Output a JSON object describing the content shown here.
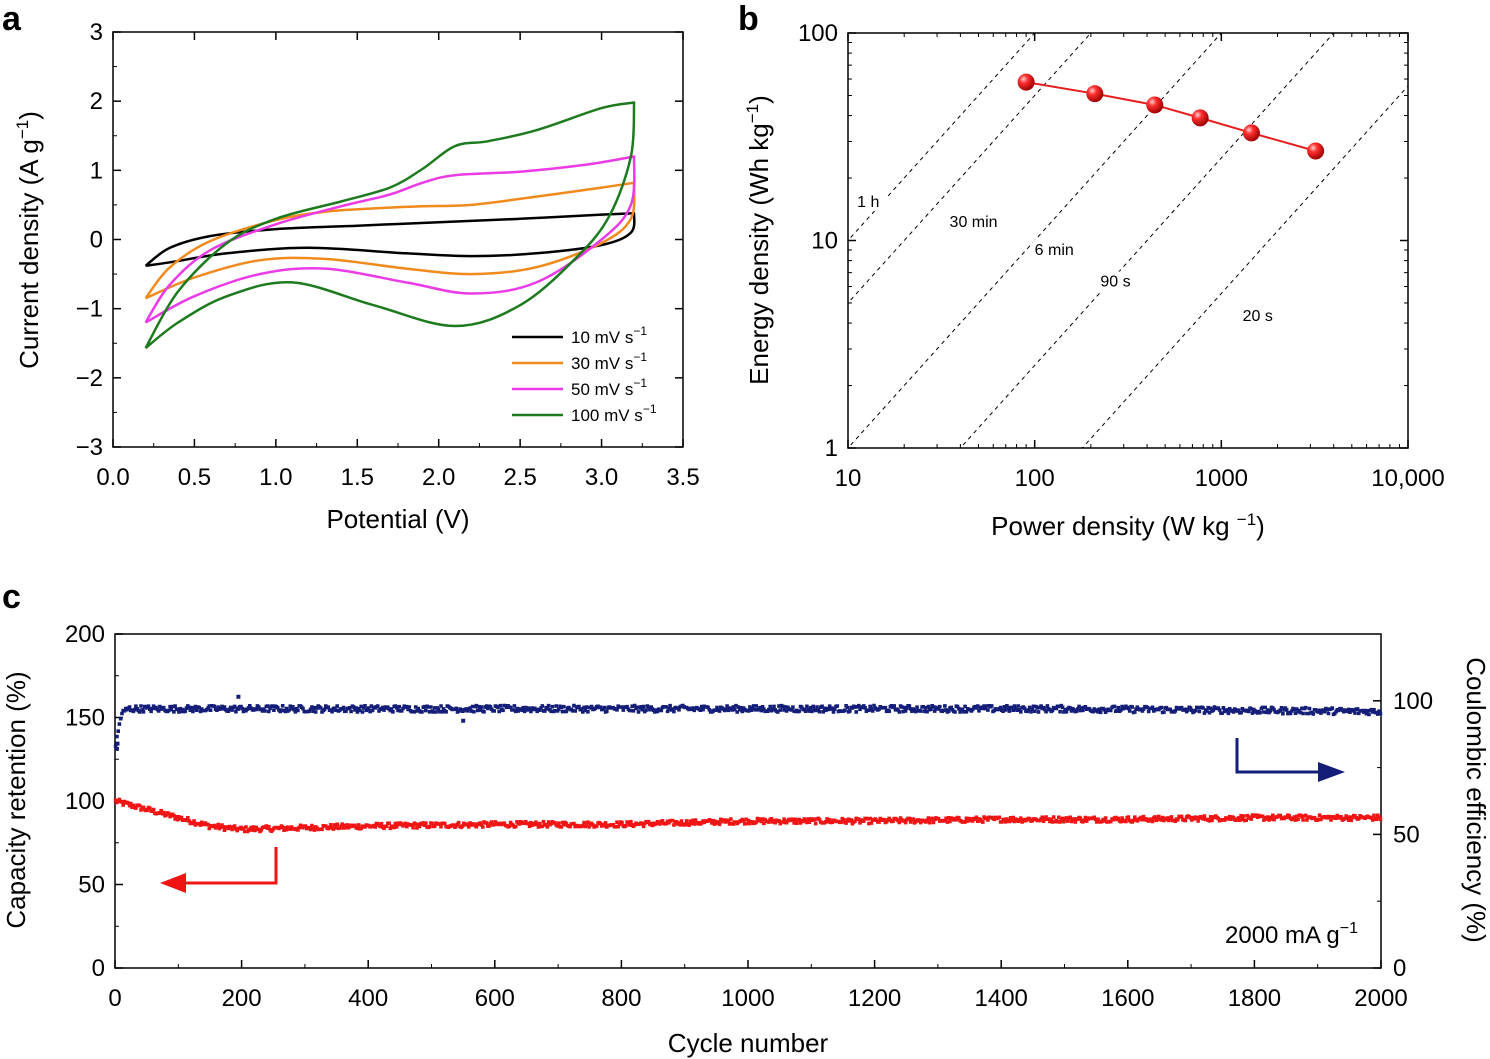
{
  "chart_data": [
    {
      "panel": "a",
      "type": "line",
      "xlabel": "Potential (V)",
      "ylabel": "Current density (A g−1)",
      "ylabel_base": "Current density (A g",
      "ylabel_sup": "−1",
      "ylabel_end": ")",
      "xlim": [
        0.0,
        3.5
      ],
      "ylim": [
        -3,
        3
      ],
      "xticks": [
        0.0,
        0.5,
        1.0,
        1.5,
        2.0,
        2.5,
        3.0,
        3.5
      ],
      "xtick_labels": [
        "0.0",
        "0.5",
        "1.0",
        "1.5",
        "2.0",
        "2.5",
        "3.0",
        "3.5"
      ],
      "yticks": [
        3,
        2,
        1,
        0,
        -1,
        -2,
        -3
      ],
      "ytick_labels": [
        "3",
        "2",
        "1",
        "0",
        "−1",
        "−2",
        "−3"
      ],
      "series": [
        {
          "name": "10 mV s−1",
          "label_base": "10 mV s",
          "label_sup": "−1",
          "color": "#000000",
          "upper": [
            [
              0.2,
              -0.38
            ],
            [
              0.35,
              -0.12
            ],
            [
              0.6,
              0.05
            ],
            [
              1.0,
              0.15
            ],
            [
              1.5,
              0.2
            ],
            [
              2.0,
              0.25
            ],
            [
              2.5,
              0.3
            ],
            [
              3.0,
              0.36
            ],
            [
              3.2,
              0.38
            ]
          ],
          "lower": [
            [
              3.2,
              0.38
            ],
            [
              3.18,
              0.1
            ],
            [
              3.0,
              -0.08
            ],
            [
              2.6,
              -0.2
            ],
            [
              2.2,
              -0.24
            ],
            [
              1.8,
              -0.2
            ],
            [
              1.2,
              -0.12
            ],
            [
              0.7,
              -0.2
            ],
            [
              0.35,
              -0.33
            ],
            [
              0.2,
              -0.38
            ]
          ]
        },
        {
          "name": "30 mV s−1",
          "label_base": "30 mV s",
          "label_sup": "−1",
          "color": "#f08a1c",
          "upper": [
            [
              0.2,
              -0.85
            ],
            [
              0.35,
              -0.4
            ],
            [
              0.6,
              -0.02
            ],
            [
              1.0,
              0.28
            ],
            [
              1.3,
              0.4
            ],
            [
              1.6,
              0.45
            ],
            [
              1.9,
              0.48
            ],
            [
              2.2,
              0.5
            ],
            [
              2.6,
              0.62
            ],
            [
              3.0,
              0.75
            ],
            [
              3.2,
              0.82
            ]
          ],
          "lower": [
            [
              3.2,
              0.82
            ],
            [
              3.18,
              0.3
            ],
            [
              3.0,
              -0.05
            ],
            [
              2.6,
              -0.4
            ],
            [
              2.2,
              -0.5
            ],
            [
              1.8,
              -0.42
            ],
            [
              1.3,
              -0.28
            ],
            [
              0.9,
              -0.3
            ],
            [
              0.5,
              -0.55
            ],
            [
              0.2,
              -0.85
            ]
          ]
        },
        {
          "name": "50 mV s−1",
          "label_base": "50 mV s",
          "label_sup": "−1",
          "color": "#ea3be6",
          "upper": [
            [
              0.2,
              -1.2
            ],
            [
              0.35,
              -0.65
            ],
            [
              0.6,
              -0.15
            ],
            [
              1.0,
              0.22
            ],
            [
              1.4,
              0.48
            ],
            [
              1.7,
              0.65
            ],
            [
              1.9,
              0.82
            ],
            [
              2.1,
              0.93
            ],
            [
              2.5,
              0.98
            ],
            [
              2.9,
              1.08
            ],
            [
              3.2,
              1.2
            ]
          ],
          "lower": [
            [
              3.2,
              1.2
            ],
            [
              3.18,
              0.5
            ],
            [
              3.0,
              0.0
            ],
            [
              2.6,
              -0.62
            ],
            [
              2.2,
              -0.78
            ],
            [
              1.8,
              -0.62
            ],
            [
              1.3,
              -0.42
            ],
            [
              0.9,
              -0.5
            ],
            [
              0.5,
              -0.82
            ],
            [
              0.2,
              -1.2
            ]
          ]
        },
        {
          "name": "100 mV s−1",
          "label_base": "100 mV s",
          "label_sup": "−1",
          "color": "#1e7a1e",
          "upper": [
            [
              0.2,
              -1.57
            ],
            [
              0.4,
              -0.75
            ],
            [
              0.7,
              -0.05
            ],
            [
              1.0,
              0.3
            ],
            [
              1.4,
              0.55
            ],
            [
              1.7,
              0.75
            ],
            [
              1.9,
              1.02
            ],
            [
              2.1,
              1.35
            ],
            [
              2.3,
              1.42
            ],
            [
              2.6,
              1.58
            ],
            [
              3.0,
              1.9
            ],
            [
              3.2,
              1.98
            ]
          ],
          "lower": [
            [
              3.2,
              1.98
            ],
            [
              3.18,
              1.2
            ],
            [
              3.05,
              0.35
            ],
            [
              2.85,
              -0.25
            ],
            [
              2.5,
              -0.95
            ],
            [
              2.1,
              -1.25
            ],
            [
              1.6,
              -0.95
            ],
            [
              1.1,
              -0.62
            ],
            [
              0.7,
              -0.82
            ],
            [
              0.4,
              -1.2
            ],
            [
              0.2,
              -1.57
            ]
          ]
        }
      ]
    },
    {
      "panel": "b",
      "type": "scatter",
      "xscale": "log",
      "yscale": "log",
      "xlabel": "Power density (W kg −1)",
      "xlabel_base": "Power density (W kg ",
      "xlabel_sup": "−1",
      "xlabel_end": ")",
      "ylabel": "Energy density (Wh kg−1)",
      "ylabel_base": "Energy density (Wh kg",
      "ylabel_sup": "−1",
      "ylabel_end": ")",
      "xlim": [
        10,
        10000
      ],
      "ylim": [
        1,
        100
      ],
      "xticks": [
        10,
        100,
        1000,
        10000
      ],
      "xtick_labels": [
        "10",
        "100",
        "1000",
        "10,000"
      ],
      "yticks": [
        1,
        10,
        100
      ],
      "ytick_labels": [
        "1",
        "10",
        "100"
      ],
      "series": [
        {
          "name": "device",
          "color": "#e61e1e",
          "x": [
            90,
            210,
            440,
            770,
            1450,
            3200
          ],
          "y": [
            58,
            51,
            45,
            39,
            33,
            27
          ]
        }
      ],
      "time_lines": [
        {
          "label": "1 h",
          "hours": 1.0
        },
        {
          "label": "30 min",
          "hours": 0.5
        },
        {
          "label": "6 min",
          "hours": 0.1
        },
        {
          "label": "90 s",
          "hours": 0.025
        },
        {
          "label": "20 s",
          "hours": 0.005556
        }
      ]
    },
    {
      "panel": "c",
      "type": "scatter",
      "xlabel": "Cycle number",
      "ylabel": "Capacity retention (%)",
      "ylabel_right": "Coulombic efficiency (%)",
      "xlim": [
        0,
        2000
      ],
      "ylim": [
        0,
        200
      ],
      "ylim_right": [
        0,
        125
      ],
      "xticks": [
        0,
        200,
        400,
        600,
        800,
        1000,
        1200,
        1400,
        1600,
        1800,
        2000
      ],
      "xtick_labels": [
        "0",
        "200",
        "400",
        "600",
        "800",
        "1000",
        "1200",
        "1400",
        "1600",
        "1800",
        "2000"
      ],
      "yticks": [
        0,
        50,
        100,
        150,
        200
      ],
      "ytick_labels": [
        "0",
        "50",
        "100",
        "150",
        "200"
      ],
      "yticks_right": [
        0,
        50,
        100
      ],
      "ytick_labels_right": [
        "0",
        "50",
        "100"
      ],
      "annotation_base": "2000 mA g",
      "annotation_sup": "−1",
      "series": [
        {
          "name": "Capacity retention",
          "axis": "left",
          "color": "#f01414",
          "points": [
            [
              0,
              100
            ],
            [
              50,
              95
            ],
            [
              100,
              90
            ],
            [
              150,
              85
            ],
            [
              200,
              83
            ],
            [
              300,
              84
            ],
            [
              400,
              85
            ],
            [
              600,
              86
            ],
            [
              800,
              86
            ],
            [
              1000,
              88
            ],
            [
              1200,
              88
            ],
            [
              1400,
              89
            ],
            [
              1600,
              89
            ],
            [
              1800,
              90
            ],
            [
              2000,
              90
            ]
          ]
        },
        {
          "name": "Coulombic efficiency",
          "axis": "right",
          "color": "#141e78",
          "points": [
            [
              0,
              82
            ],
            [
              10,
              95
            ],
            [
              20,
              97
            ],
            [
              100,
              97
            ],
            [
              500,
              97
            ],
            [
              1000,
              97
            ],
            [
              1500,
              97
            ],
            [
              2000,
              96
            ]
          ]
        }
      ]
    }
  ],
  "panel_labels": [
    "a",
    "b",
    "c"
  ]
}
